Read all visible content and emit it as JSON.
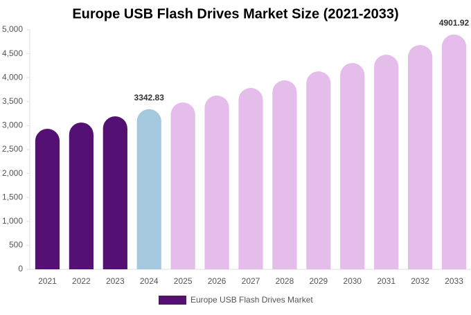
{
  "chart_data": {
    "type": "bar",
    "title": "Europe USB Flash Drives Market Size (2021-2033)",
    "categories": [
      "2021",
      "2022",
      "2023",
      "2024",
      "2025",
      "2026",
      "2027",
      "2028",
      "2029",
      "2030",
      "2031",
      "2032",
      "2033"
    ],
    "series": [
      {
        "name": "Europe USB Flash Drives Market",
        "color": "#541173",
        "values": [
          2933,
          3064,
          3194,
          3342.83,
          3483,
          3627,
          3786,
          3945,
          4133,
          4306,
          4480,
          4682,
          4901.92
        ],
        "value_labels": [
          null,
          null,
          null,
          "3342.83",
          null,
          null,
          null,
          null,
          null,
          null,
          null,
          null,
          "4901.92"
        ],
        "colors": [
          "#541173",
          "#541173",
          "#541173",
          "#a4c9de",
          "#e5bdea",
          "#e5bdea",
          "#e5bdea",
          "#e5bdea",
          "#e5bdea",
          "#e5bdea",
          "#e5bdea",
          "#e5bdea",
          "#e5bdea"
        ]
      }
    ],
    "ylim": [
      0,
      5000
    ],
    "yticks": [
      0,
      500,
      {
        "value": 1000,
        "label": "1,000"
      },
      {
        "value": 1500,
        "label": "1,500"
      },
      {
        "value": 2000,
        "label": "2,000"
      },
      {
        "value": 2500,
        "label": "2,500"
      },
      {
        "value": 3000,
        "label": "3,000"
      },
      {
        "value": 3500,
        "label": "3,500"
      },
      {
        "value": 4000,
        "label": "4,000"
      },
      {
        "value": 4500,
        "label": "4,500"
      },
      {
        "value": 5000,
        "label": "5,000"
      }
    ],
    "grid": false,
    "legend": "bottom"
  }
}
